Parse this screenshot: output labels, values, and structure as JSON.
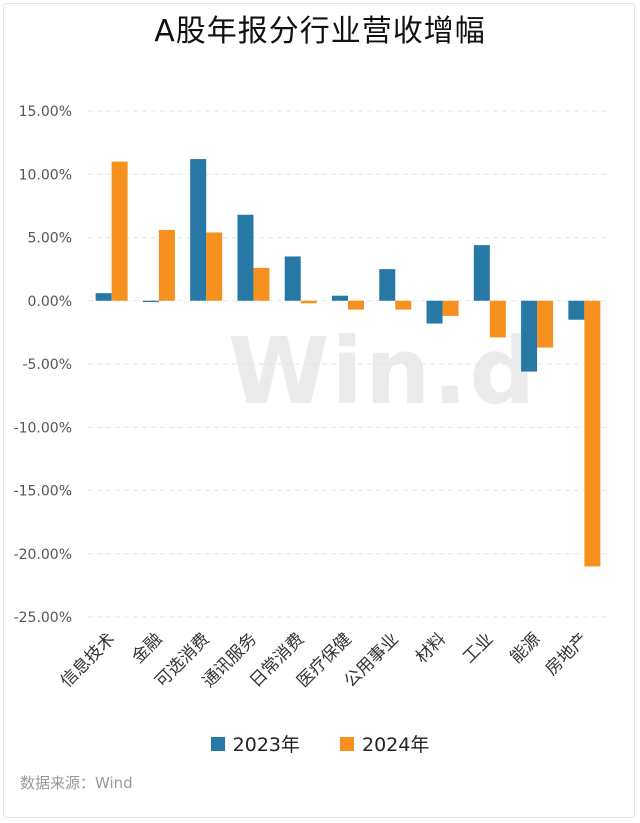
{
  "chart_data": {
    "type": "bar",
    "title": "A股年报分行业营收增幅",
    "categories": [
      "信息技术",
      "金融",
      "可选消费",
      "通讯服务",
      "日常消费",
      "医疗保健",
      "公用事业",
      "材料",
      "工业",
      "能源",
      "房地产"
    ],
    "series": [
      {
        "name": "2023年",
        "color": "#2878a5",
        "values": [
          0.6,
          -0.1,
          11.2,
          6.8,
          3.5,
          0.4,
          2.5,
          -1.8,
          4.4,
          -5.6,
          -1.5
        ]
      },
      {
        "name": "2024年",
        "color": "#f6901e",
        "values": [
          11.0,
          5.6,
          5.4,
          2.6,
          -0.2,
          -0.7,
          -0.7,
          -1.2,
          -2.9,
          -3.7,
          -21.0
        ]
      }
    ],
    "ylim": [
      -25,
      15
    ],
    "yticks": [
      15,
      10,
      5,
      0,
      -5,
      -10,
      -15,
      -20,
      -25
    ],
    "ytick_labels": [
      "15.00%",
      "10.00%",
      "5.00%",
      "0.00%",
      "-5.00%",
      "-10.00%",
      "-15.00%",
      "-20.00%",
      "-25.00%"
    ],
    "grid": true,
    "legend": "bottom"
  },
  "watermark": "Win.d",
  "source": "数据来源：Wind"
}
